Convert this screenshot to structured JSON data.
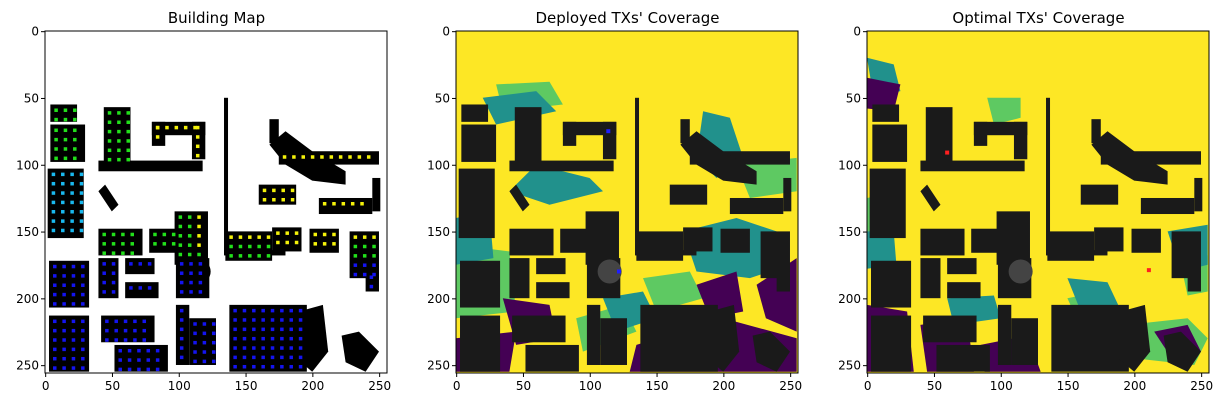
{
  "panels": [
    {
      "title": "Building Map"
    },
    {
      "title": "Deployed TXs' Coverage"
    },
    {
      "title": "Optimal TXs' Coverage"
    }
  ],
  "chart_data": [
    {
      "type": "heatmap",
      "title": "Building Map",
      "xlim": [
        0,
        255
      ],
      "ylim": [
        255,
        0
      ],
      "x_ticks": [
        0,
        50,
        100,
        150,
        200,
        250
      ],
      "y_ticks": [
        0,
        50,
        100,
        150,
        200,
        250
      ],
      "grid": false,
      "colors": {
        "building": "#000000",
        "background": "#ffffff",
        "marker_green": "#22e01b",
        "marker_yellow": "#f4f20a",
        "marker_cyan": "#1ab8ee",
        "marker_blue": "#1414f0"
      }
    },
    {
      "type": "heatmap",
      "title": "Deployed TXs' Coverage",
      "xlim": [
        0,
        255
      ],
      "ylim": [
        255,
        0
      ],
      "x_ticks": [
        0,
        50,
        100,
        150,
        200,
        250
      ],
      "y_ticks": [
        0,
        50,
        100,
        150,
        200,
        250
      ],
      "grid": false,
      "transmitters": [
        {
          "x": 114,
          "y": 75
        },
        {
          "x": 122,
          "y": 180
        }
      ],
      "colors": {
        "covered": "#fde725",
        "high": "#5ec962",
        "mid": "#21918c",
        "low": "#440154",
        "building": "#1a1a1a",
        "tx": "#1f1fff"
      }
    },
    {
      "type": "heatmap",
      "title": "Optimal TXs' Coverage",
      "xlim": [
        0,
        255
      ],
      "ylim": [
        255,
        0
      ],
      "x_ticks": [
        0,
        50,
        100,
        150,
        200,
        250
      ],
      "y_ticks": [
        0,
        50,
        100,
        150,
        200,
        250
      ],
      "grid": false,
      "transmitters": [
        {
          "x": 60,
          "y": 91
        },
        {
          "x": 211,
          "y": 179
        }
      ],
      "colors": {
        "covered": "#fde725",
        "high": "#5ec962",
        "mid": "#21918c",
        "low": "#440154",
        "building": "#1a1a1a",
        "tx": "#ff2020"
      }
    }
  ]
}
